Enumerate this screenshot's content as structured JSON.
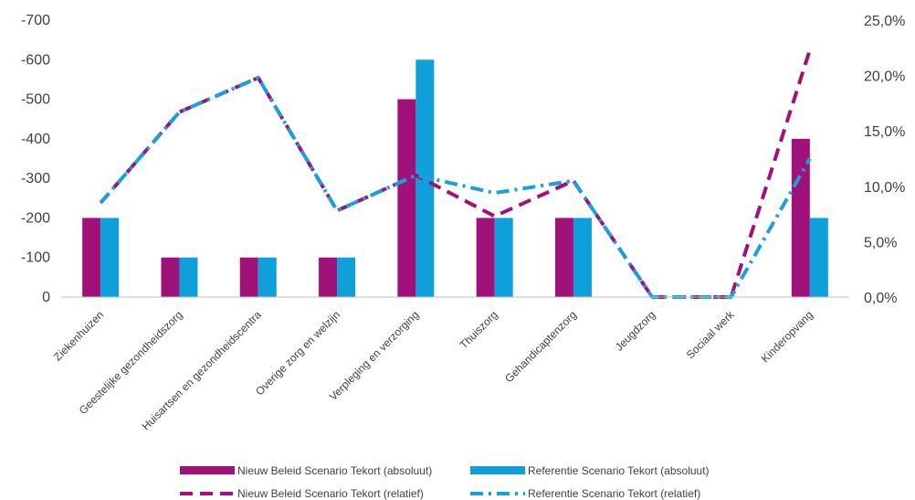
{
  "chart_data": {
    "type": "bar",
    "categories": [
      "Ziekenhuizen",
      "Geestelijke gezondheidszorg",
      "Huisartsen en gezondheidscentra",
      "Overige zorg en welzijn",
      "Verpleging en verzorging",
      "Thuiszorg",
      "Gehandicaptenzorg",
      "Jeugdzorg",
      "Sociaal werk",
      "Kinderopvang"
    ],
    "bar_series": [
      {
        "name": "Nieuw Beleid Scenario Tekort (absoluut)",
        "color": "#a0127a",
        "values": [
          -200,
          -100,
          -100,
          -100,
          -500,
          -200,
          -200,
          0,
          0,
          -400
        ]
      },
      {
        "name": "Referentie Scenario Tekort (absoluut)",
        "color": "#0fa0dc",
        "values": [
          -200,
          -100,
          -100,
          -100,
          -600,
          -200,
          -200,
          0,
          0,
          -200
        ]
      }
    ],
    "line_series": [
      {
        "name": "Nieuw Beleid Scenario Tekort (relatief)",
        "color": "#a0127a",
        "dash": "dash",
        "values": [
          8.5,
          16.7,
          19.8,
          7.8,
          11.0,
          7.3,
          10.5,
          0.0,
          0.0,
          22.3
        ]
      },
      {
        "name": "Referentie Scenario Tekort (relatief)",
        "color": "#1aa0dc",
        "dash": "dashdot",
        "values": [
          8.5,
          16.7,
          19.8,
          7.8,
          11.0,
          9.4,
          10.5,
          0.0,
          0.0,
          12.5
        ]
      }
    ],
    "y_left": {
      "ticks": [
        "-700",
        "-600",
        "-500",
        "-400",
        "-300",
        "-200",
        "-100",
        "0"
      ],
      "min": 0,
      "max": -700,
      "inverted": true
    },
    "y_right": {
      "ticks": [
        "25,0%",
        "20,0%",
        "15,0%",
        "10,0%",
        "5,0%",
        "0,0%"
      ],
      "min": 0,
      "max": 25
    },
    "grid": false,
    "legend_position": "bottom"
  }
}
